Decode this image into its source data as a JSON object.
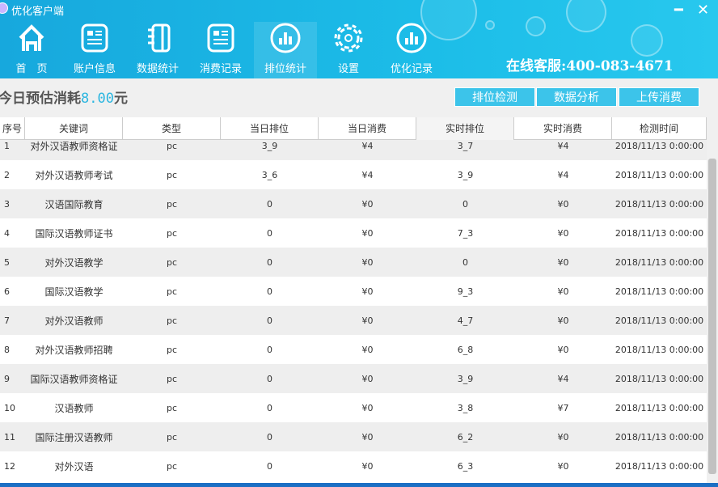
{
  "app": {
    "title": "优化客户端",
    "minimize": "━",
    "close": "✕"
  },
  "nav": [
    {
      "label": "首　页",
      "icon": "home-icon"
    },
    {
      "label": "账户信息",
      "icon": "account-card-icon"
    },
    {
      "label": "数据统计",
      "icon": "notebook-icon"
    },
    {
      "label": "消费记录",
      "icon": "record-card-icon"
    },
    {
      "label": "排位统计",
      "icon": "bar-chart-circle-icon",
      "active": true
    },
    {
      "label": "设置",
      "icon": "gear-icon"
    },
    {
      "label": "优化记录",
      "icon": "bar-chart-circle-icon"
    }
  ],
  "support": "在线客服:400-083-4671",
  "estimate": {
    "label": "今日预估消耗",
    "value": "8.00",
    "unit": "元"
  },
  "buttons": [
    "排位检测",
    "数据分析",
    "上传消费"
  ],
  "table": {
    "columns": [
      "序号",
      "关键词",
      "类型",
      "当日排位",
      "当日消费",
      "实时排位",
      "实时消费",
      "检测时间"
    ],
    "rows": [
      [
        "1",
        "对外汉语教师资格证",
        "pc",
        "3_9",
        "¥4",
        "3_7",
        "¥4",
        "2018/11/13 0:00:00"
      ],
      [
        "2",
        "对外汉语教师考试",
        "pc",
        "3_6",
        "¥4",
        "3_9",
        "¥4",
        "2018/11/13 0:00:00"
      ],
      [
        "3",
        "汉语国际教育",
        "pc",
        "0",
        "¥0",
        "0",
        "¥0",
        "2018/11/13 0:00:00"
      ],
      [
        "4",
        "国际汉语教师证书",
        "pc",
        "0",
        "¥0",
        "7_3",
        "¥0",
        "2018/11/13 0:00:00"
      ],
      [
        "5",
        "对外汉语教学",
        "pc",
        "0",
        "¥0",
        "0",
        "¥0",
        "2018/11/13 0:00:00"
      ],
      [
        "6",
        "国际汉语教学",
        "pc",
        "0",
        "¥0",
        "9_3",
        "¥0",
        "2018/11/13 0:00:00"
      ],
      [
        "7",
        "对外汉语教师",
        "pc",
        "0",
        "¥0",
        "4_7",
        "¥0",
        "2018/11/13 0:00:00"
      ],
      [
        "8",
        "对外汉语教师招聘",
        "pc",
        "0",
        "¥0",
        "6_8",
        "¥0",
        "2018/11/13 0:00:00"
      ],
      [
        "9",
        "国际汉语教师资格证",
        "pc",
        "0",
        "¥0",
        "3_9",
        "¥4",
        "2018/11/13 0:00:00"
      ],
      [
        "10",
        "汉语教师",
        "pc",
        "0",
        "¥0",
        "3_8",
        "¥7",
        "2018/11/13 0:00:00"
      ],
      [
        "11",
        "国际注册汉语教师",
        "pc",
        "0",
        "¥0",
        "6_2",
        "¥0",
        "2018/11/13 0:00:00"
      ],
      [
        "12",
        "对外汉语",
        "pc",
        "0",
        "¥0",
        "6_3",
        "¥0",
        "2018/11/13 0:00:00"
      ]
    ]
  }
}
